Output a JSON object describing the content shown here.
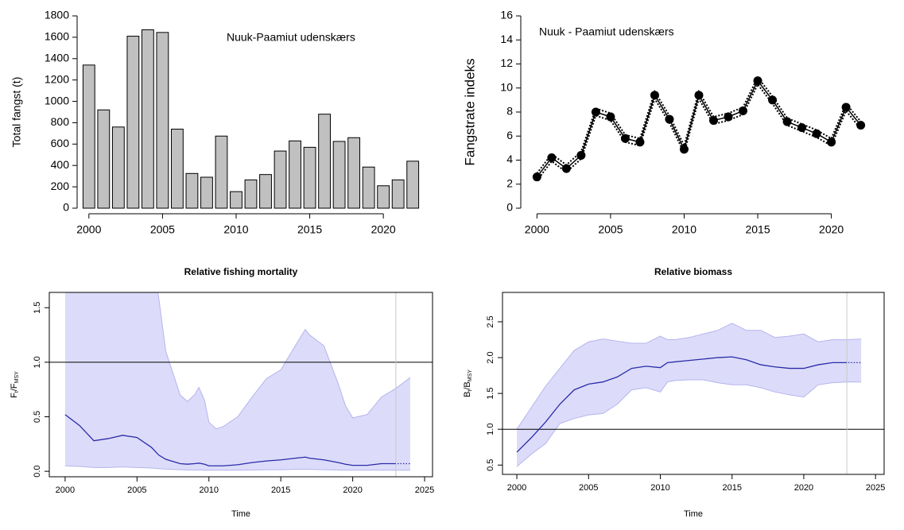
{
  "chart_data": [
    {
      "type": "bar",
      "annotation": "Nuuk-Paamiut udenskærs",
      "ylabel": "Total fangst (t)",
      "x": [
        2000,
        2001,
        2002,
        2003,
        2004,
        2005,
        2006,
        2007,
        2008,
        2009,
        2010,
        2011,
        2012,
        2013,
        2014,
        2015,
        2016,
        2017,
        2018,
        2019,
        2020,
        2021,
        2022
      ],
      "values": [
        1340,
        920,
        760,
        1610,
        1670,
        1645,
        740,
        325,
        290,
        675,
        155,
        265,
        315,
        535,
        630,
        570,
        880,
        625,
        660,
        385,
        210,
        265,
        440
      ],
      "color": "#c0c0c0",
      "xlim": [
        1999.2,
        2022.8
      ],
      "ylim": [
        0,
        1800
      ],
      "xticks": [
        2000,
        2005,
        2010,
        2015,
        2020
      ],
      "yticks": [
        0,
        200,
        400,
        600,
        800,
        1000,
        1200,
        1400,
        1600,
        1800
      ]
    },
    {
      "type": "line",
      "annotation": "Nuuk - Paamiut udenskærs",
      "ylabel": "Fangstrate indeks",
      "x": [
        2000,
        2001,
        2002,
        2003,
        2004,
        2005,
        2006,
        2007,
        2008,
        2009,
        2010,
        2011,
        2012,
        2013,
        2014,
        2015,
        2016,
        2017,
        2018,
        2019,
        2020,
        2021,
        2022
      ],
      "values": [
        2.6,
        4.2,
        3.3,
        4.4,
        8.0,
        7.6,
        5.8,
        5.5,
        9.4,
        7.4,
        4.9,
        9.4,
        7.3,
        7.6,
        8.1,
        10.6,
        9.0,
        7.2,
        6.7,
        6.2,
        5.5,
        8.4,
        6.9
      ],
      "lower": [
        2.3,
        3.9,
        3.0,
        4.1,
        7.7,
        7.3,
        5.5,
        5.2,
        9.1,
        7.1,
        4.6,
        9.1,
        7.0,
        7.3,
        7.8,
        10.3,
        8.7,
        6.9,
        6.4,
        5.9,
        5.2,
        8.1,
        6.6
      ],
      "upper": [
        2.9,
        4.5,
        3.6,
        4.7,
        8.3,
        7.9,
        6.1,
        5.8,
        9.7,
        7.7,
        5.2,
        9.7,
        7.6,
        7.9,
        8.4,
        10.9,
        9.3,
        7.5,
        7.0,
        6.5,
        5.8,
        8.7,
        7.2
      ],
      "color": "#000000",
      "xlim": [
        1998.9,
        2023.1
      ],
      "ylim": [
        0,
        16
      ],
      "xticks": [
        2000,
        2005,
        2010,
        2015,
        2020
      ],
      "yticks": [
        0,
        2,
        4,
        6,
        8,
        10,
        12,
        14,
        16
      ]
    },
    {
      "type": "band",
      "title": "Relative fishing mortality",
      "xlabel": "Time",
      "ylabel": [
        "F",
        "t",
        "/F",
        "MSY"
      ],
      "x": [
        2000,
        2001,
        2002,
        2003,
        2004,
        2005,
        2006,
        2006.5,
        2007,
        2008,
        2008.5,
        2009,
        2009.3,
        2009.7,
        2010,
        2010.5,
        2011,
        2012,
        2013,
        2014,
        2015,
        2016,
        2016.7,
        2017,
        2018,
        2019,
        2019.5,
        2020,
        2021,
        2022,
        2023,
        2024
      ],
      "values": [
        0.52,
        0.42,
        0.28,
        0.3,
        0.33,
        0.31,
        0.22,
        0.15,
        0.11,
        0.07,
        0.065,
        0.07,
        0.075,
        0.065,
        0.05,
        0.05,
        0.05,
        0.06,
        0.08,
        0.095,
        0.105,
        0.12,
        0.13,
        0.12,
        0.105,
        0.08,
        0.065,
        0.055,
        0.055,
        0.07,
        0.07,
        0.07
      ],
      "lower": [
        0.05,
        0.045,
        0.035,
        0.035,
        0.04,
        0.035,
        0.03,
        0.025,
        0.02,
        0.015,
        0.012,
        0.012,
        0.012,
        0.01,
        0.01,
        0.01,
        0.01,
        0.01,
        0.012,
        0.015,
        0.015,
        0.018,
        0.018,
        0.018,
        0.015,
        0.012,
        0.01,
        0.01,
        0.01,
        0.01,
        0.01,
        0.01
      ],
      "upper": [
        2.0,
        2.0,
        2.0,
        2.0,
        2.0,
        2.0,
        2.0,
        1.6,
        1.1,
        0.7,
        0.64,
        0.7,
        0.77,
        0.65,
        0.45,
        0.39,
        0.41,
        0.5,
        0.68,
        0.85,
        0.93,
        1.15,
        1.3,
        1.25,
        1.15,
        0.8,
        0.6,
        0.49,
        0.52,
        0.68,
        0.76,
        0.86
      ],
      "color": "#2b2ba8",
      "band_color": "#dcdcfa",
      "hline": 1,
      "vline": 2023,
      "xlim": [
        1998.9,
        2025.55
      ],
      "ylim": [
        -0.05,
        1.64
      ],
      "xticks": [
        2000,
        2005,
        2010,
        2015,
        2020,
        2025
      ],
      "yticks": [
        {
          "value": 0,
          "label": "0.0"
        },
        {
          "value": 0.5,
          "label": "0.5"
        },
        {
          "value": 1,
          "label": "1.0"
        },
        {
          "value": 1.5,
          "label": "1.5"
        }
      ]
    },
    {
      "type": "band",
      "title": "Relative biomass",
      "xlabel": "Time",
      "ylabel": [
        "B",
        "t",
        "/B",
        "MSY"
      ],
      "x": [
        2000,
        2001,
        2002,
        2003,
        2004,
        2005,
        2006,
        2007,
        2008,
        2009,
        2010,
        2010.5,
        2011,
        2012,
        2013,
        2014,
        2015,
        2016,
        2017,
        2018,
        2019,
        2020,
        2021,
        2022,
        2023,
        2024
      ],
      "values": [
        0.68,
        0.88,
        1.1,
        1.35,
        1.55,
        1.63,
        1.66,
        1.73,
        1.85,
        1.88,
        1.86,
        1.93,
        1.94,
        1.96,
        1.98,
        2.0,
        2.01,
        1.97,
        1.9,
        1.87,
        1.85,
        1.85,
        1.9,
        1.93,
        1.93,
        1.93
      ],
      "lower": [
        0.48,
        0.65,
        0.8,
        1.08,
        1.15,
        1.2,
        1.22,
        1.35,
        1.55,
        1.58,
        1.52,
        1.66,
        1.68,
        1.69,
        1.69,
        1.65,
        1.62,
        1.62,
        1.58,
        1.52,
        1.48,
        1.45,
        1.62,
        1.65,
        1.66,
        1.66
      ],
      "upper": [
        1.0,
        1.3,
        1.6,
        1.85,
        2.1,
        2.22,
        2.26,
        2.23,
        2.2,
        2.2,
        2.3,
        2.25,
        2.25,
        2.28,
        2.33,
        2.38,
        2.48,
        2.38,
        2.38,
        2.28,
        2.3,
        2.33,
        2.22,
        2.25,
        2.25,
        2.26
      ],
      "color": "#2b2ba8",
      "band_color": "#dcdcfa",
      "hline": 1,
      "vline": 2023,
      "xlim": [
        1999.0,
        2025.6
      ],
      "ylim": [
        0.37,
        2.91
      ],
      "xticks": [
        2000,
        2005,
        2010,
        2015,
        2020,
        2025
      ],
      "yticks": [
        {
          "value": 0.5,
          "label": "0.5"
        },
        {
          "value": 1,
          "label": "1.0"
        },
        {
          "value": 1.5,
          "label": "1.5"
        },
        {
          "value": 2,
          "label": "2.0"
        },
        {
          "value": 2.5,
          "label": "2.5"
        }
      ]
    }
  ]
}
